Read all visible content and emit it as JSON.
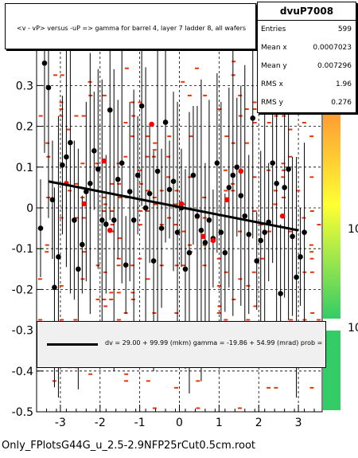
{
  "title": "<v - vP>       versus -uP =>  gamma for barrel 4, layer 7 ladder 8, all wafers",
  "stats": {
    "name": "dvuP7008",
    "rows": [
      {
        "k": "Entries",
        "v": "599"
      },
      {
        "k": "Mean x",
        "v": "0.0007023"
      },
      {
        "k": "Mean y",
        "v": "0.007296"
      },
      {
        "k": "RMS x",
        "v": "1.96"
      },
      {
        "k": "RMS y",
        "v": "0.276"
      }
    ]
  },
  "fit_text": "dv =    29.00 + 99.99 (mkm) gamma =  -19.86 + 54.99 (mrad) prob = 1.000",
  "footer": "Only_FPlotsG44G_u_2.5-2.9NFP25rCut0.5cm.root",
  "colors": {
    "histogram": "#e8340a",
    "profile": "#000000",
    "marked": "#ff0000",
    "palette_top": "#ff9933",
    "palette_bottom": "#33cc66"
  },
  "palette_labels": [
    "10",
    "10"
  ],
  "chart_data": {
    "type": "scatter",
    "xlim": [
      -3.6,
      3.6
    ],
    "ylim": [
      -0.5,
      0.5
    ],
    "xticks": [
      "-3",
      "-2",
      "-1",
      "0",
      "1",
      "2",
      "3"
    ],
    "yticks": [
      "-0.5",
      "-0.4",
      "-0.3",
      "-0.2",
      "-0.1",
      "0",
      "0.1",
      "0.2",
      "0.3",
      "0.4"
    ],
    "grid": "dashed",
    "fit_line": {
      "x": [
        -3.3,
        3.0
      ],
      "y": [
        0.065,
        -0.055
      ]
    },
    "profile_points": [
      {
        "x": -3.5,
        "y": -0.05
      },
      {
        "x": -3.4,
        "y": 0.355
      },
      {
        "x": -3.3,
        "y": 0.295
      },
      {
        "x": -3.2,
        "y": 0.02
      },
      {
        "x": -3.15,
        "y": -0.195
      },
      {
        "x": -3.05,
        "y": -0.12
      },
      {
        "x": -2.95,
        "y": 0.105
      },
      {
        "x": -2.85,
        "y": 0.125
      },
      {
        "x": -2.75,
        "y": 0.16
      },
      {
        "x": -2.65,
        "y": -0.03
      },
      {
        "x": -2.55,
        "y": -0.15
      },
      {
        "x": -2.45,
        "y": -0.09
      },
      {
        "x": -2.35,
        "y": 0.04
      },
      {
        "x": -2.25,
        "y": 0.06
      },
      {
        "x": -2.15,
        "y": 0.14
      },
      {
        "x": -2.05,
        "y": 0.095
      },
      {
        "x": -1.95,
        "y": -0.03
      },
      {
        "x": -1.85,
        "y": -0.04
      },
      {
        "x": -1.75,
        "y": 0.24
      },
      {
        "x": -1.65,
        "y": -0.03
      },
      {
        "x": -1.55,
        "y": 0.07
      },
      {
        "x": -1.45,
        "y": 0.11
      },
      {
        "x": -1.35,
        "y": -0.14
      },
      {
        "x": -1.25,
        "y": 0.04
      },
      {
        "x": -1.15,
        "y": -0.03
      },
      {
        "x": -1.05,
        "y": 0.08
      },
      {
        "x": -0.95,
        "y": 0.25
      },
      {
        "x": -0.85,
        "y": 0.0
      },
      {
        "x": -0.75,
        "y": 0.035
      },
      {
        "x": -0.65,
        "y": -0.13
      },
      {
        "x": -0.55,
        "y": 0.09
      },
      {
        "x": -0.45,
        "y": -0.05
      },
      {
        "x": -0.35,
        "y": 0.21
      },
      {
        "x": -0.25,
        "y": 0.045
      },
      {
        "x": -0.15,
        "y": 0.065
      },
      {
        "x": -0.05,
        "y": -0.06
      },
      {
        "x": 0.05,
        "y": 0.0
      },
      {
        "x": 0.15,
        "y": -0.15
      },
      {
        "x": 0.25,
        "y": -0.11
      },
      {
        "x": 0.35,
        "y": 0.08
      },
      {
        "x": 0.45,
        "y": -0.02
      },
      {
        "x": 0.55,
        "y": -0.055
      },
      {
        "x": 0.65,
        "y": -0.085
      },
      {
        "x": 0.75,
        "y": -0.03
      },
      {
        "x": 0.85,
        "y": -0.075
      },
      {
        "x": 0.95,
        "y": 0.11
      },
      {
        "x": 1.05,
        "y": -0.06
      },
      {
        "x": 1.15,
        "y": -0.11
      },
      {
        "x": 1.25,
        "y": 0.05
      },
      {
        "x": 1.35,
        "y": 0.08
      },
      {
        "x": 1.45,
        "y": 0.1
      },
      {
        "x": 1.55,
        "y": 0.03
      },
      {
        "x": 1.65,
        "y": -0.02
      },
      {
        "x": 1.75,
        "y": -0.065
      },
      {
        "x": 1.85,
        "y": 0.22
      },
      {
        "x": 1.95,
        "y": -0.13
      },
      {
        "x": 2.05,
        "y": -0.08
      },
      {
        "x": 2.15,
        "y": -0.06
      },
      {
        "x": 2.25,
        "y": -0.035
      },
      {
        "x": 2.35,
        "y": 0.11
      },
      {
        "x": 2.45,
        "y": 0.06
      },
      {
        "x": 2.55,
        "y": -0.21
      },
      {
        "x": 2.65,
        "y": 0.05
      },
      {
        "x": 2.75,
        "y": 0.095
      },
      {
        "x": 2.85,
        "y": -0.07
      },
      {
        "x": 2.95,
        "y": -0.17
      },
      {
        "x": 3.05,
        "y": -0.12
      },
      {
        "x": 3.15,
        "y": -0.06
      }
    ],
    "marked_points": [
      {
        "x": -2.85,
        "y": 0.06
      },
      {
        "x": -2.4,
        "y": 0.01
      },
      {
        "x": -1.9,
        "y": 0.115
      },
      {
        "x": -1.75,
        "y": -0.055
      },
      {
        "x": -0.7,
        "y": 0.205
      },
      {
        "x": 0.05,
        "y": 0.01
      },
      {
        "x": 0.6,
        "y": -0.07
      },
      {
        "x": 0.85,
        "y": -0.08
      },
      {
        "x": 1.2,
        "y": 0.02
      },
      {
        "x": 1.55,
        "y": 0.09
      },
      {
        "x": 2.6,
        "y": -0.02
      }
    ],
    "bins": {
      "x": 20,
      "y": 30
    }
  }
}
